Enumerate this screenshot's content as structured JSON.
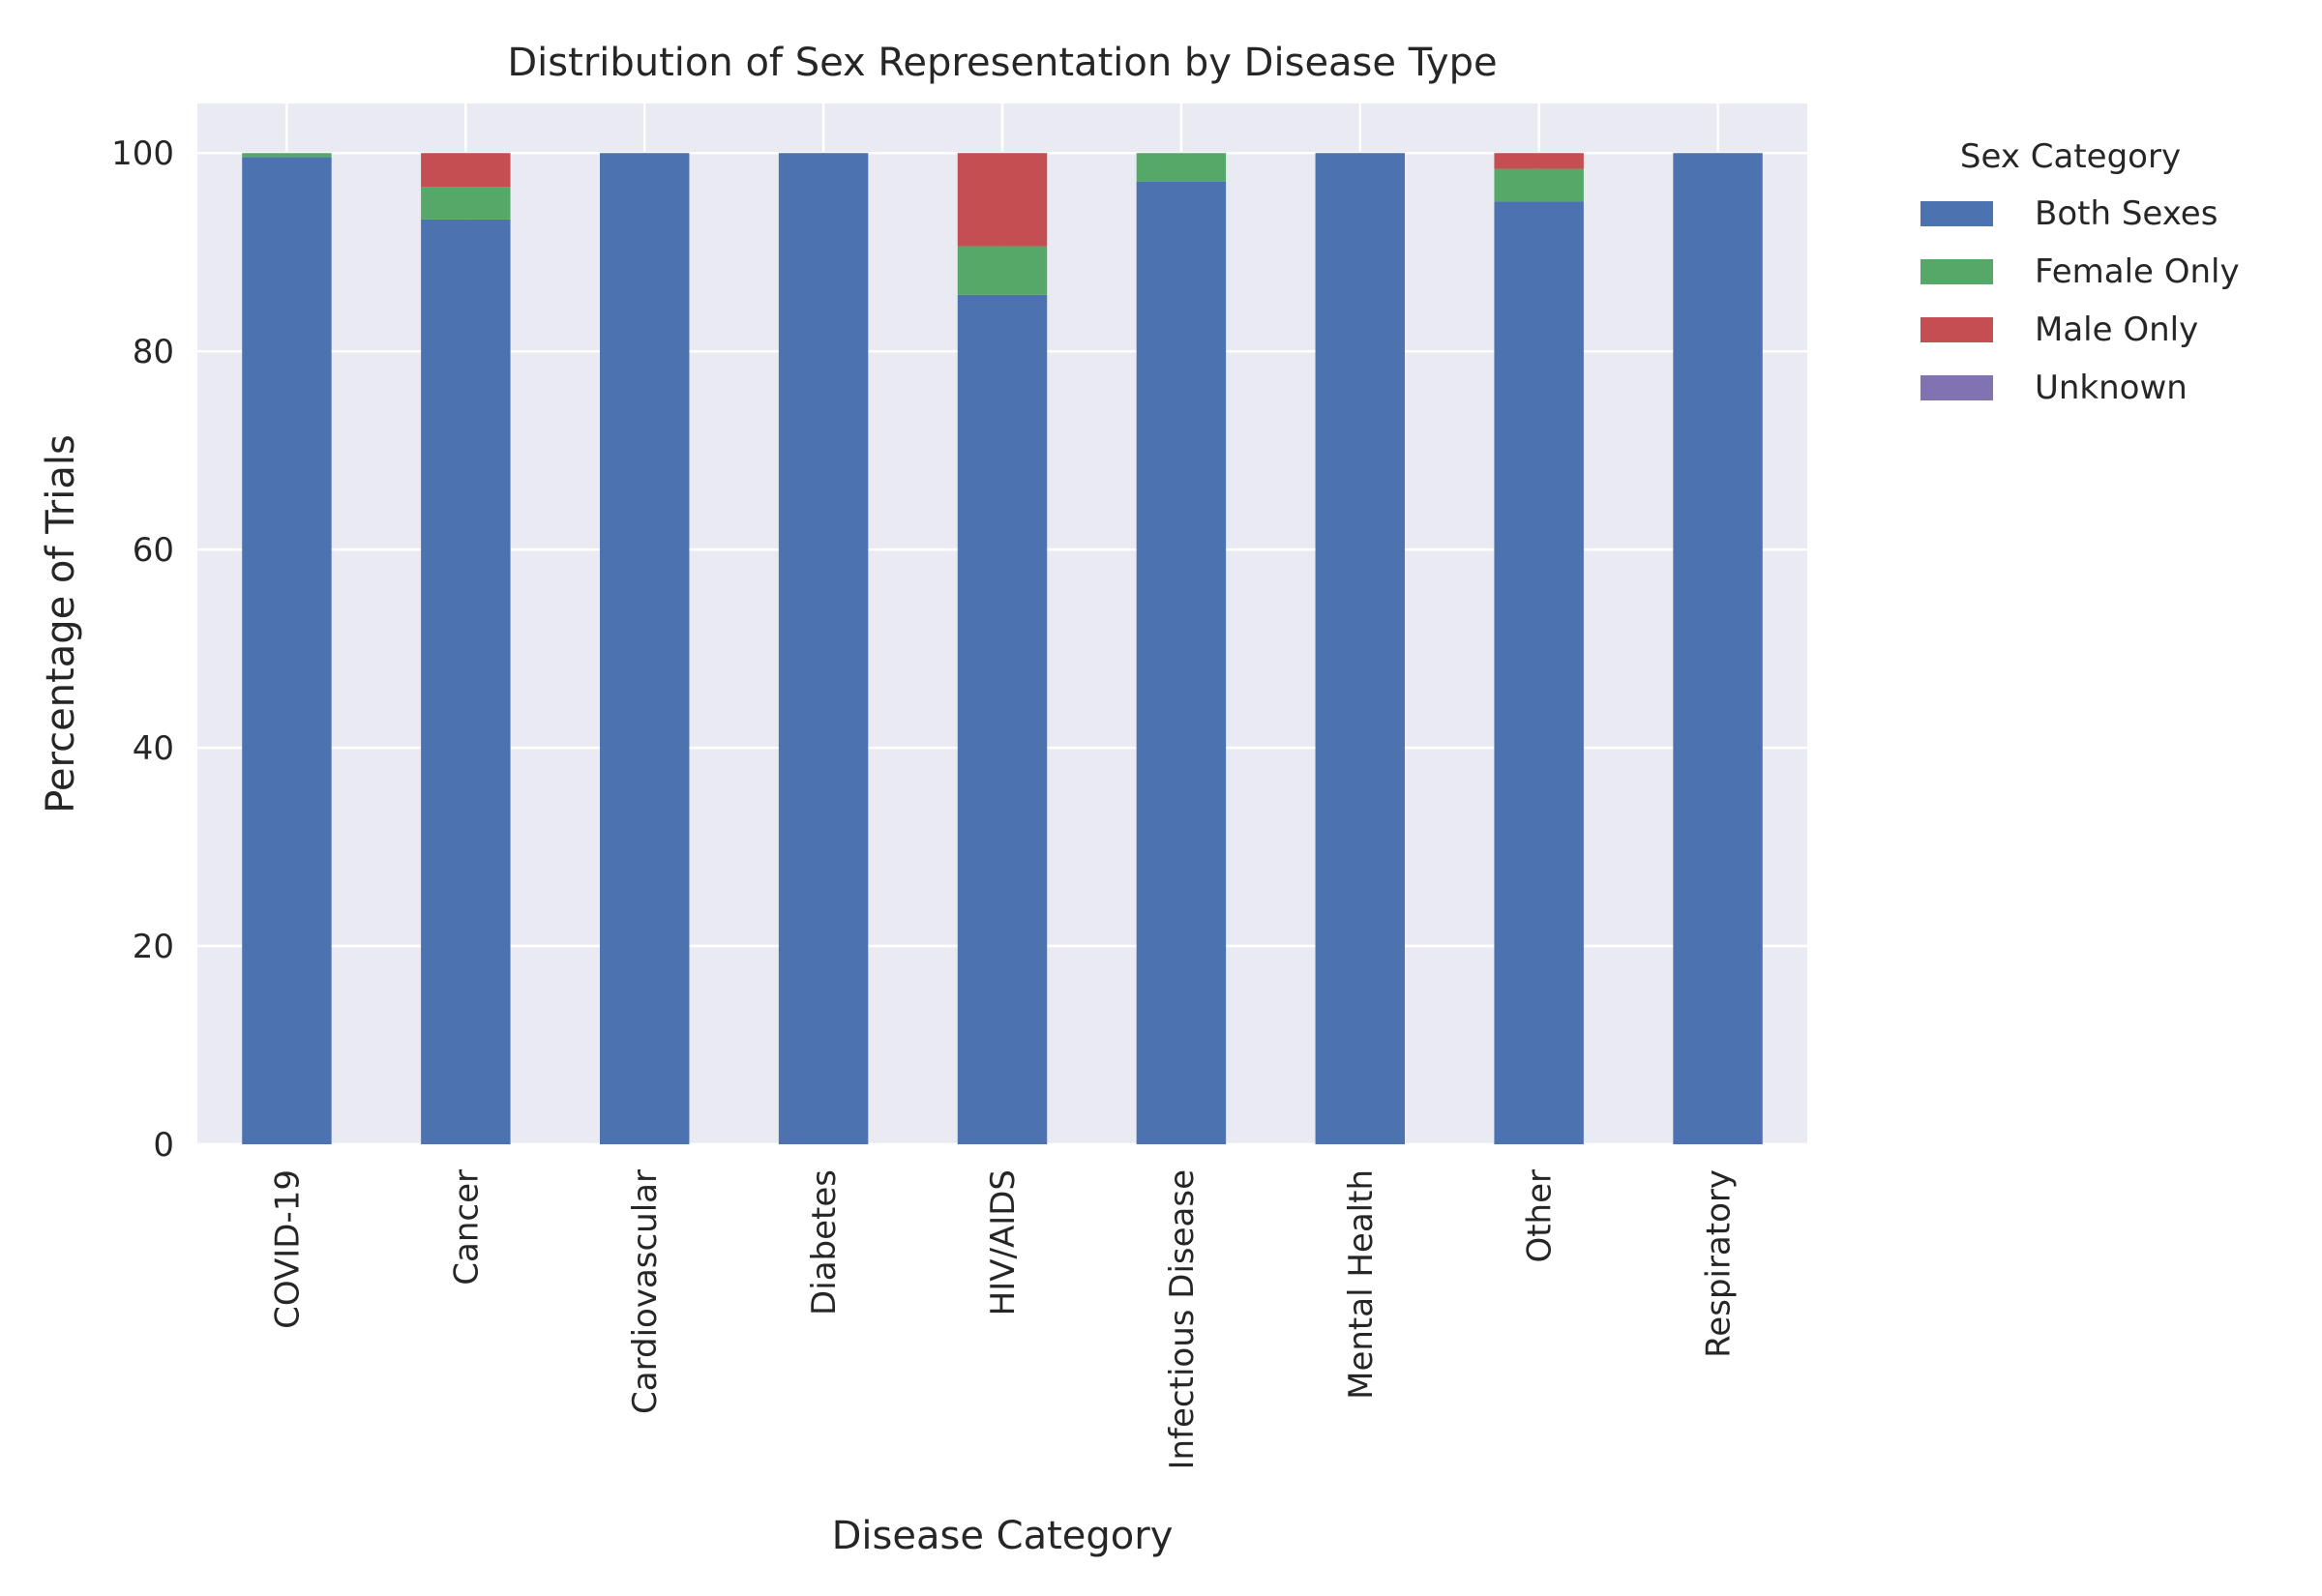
{
  "chart_data": {
    "type": "bar",
    "stacked": true,
    "title": "Distribution of Sex Representation by Disease Type",
    "xlabel": "Disease Category",
    "ylabel": "Percentage of Trials",
    "ylim": [
      0,
      105
    ],
    "yticks": [
      0,
      20,
      40,
      60,
      80,
      100
    ],
    "grid": true,
    "legend_position": "outside-right",
    "legend_title": "Sex Category",
    "categories": [
      "COVID-19",
      "Cancer",
      "Cardiovascular",
      "Diabetes",
      "HIV/AIDS",
      "Infectious Disease",
      "Mental Health",
      "Other",
      "Respiratory"
    ],
    "series": [
      {
        "name": "Both Sexes",
        "color": "#4c72b0",
        "values": [
          99.6,
          93.3,
          100,
          100,
          85.7,
          97.1,
          100,
          95.1,
          100
        ]
      },
      {
        "name": "Female Only",
        "color": "#55a868",
        "values": [
          0.4,
          3.3,
          0,
          0,
          4.9,
          2.9,
          0,
          3.3,
          0
        ]
      },
      {
        "name": "Male Only",
        "color": "#c44e52",
        "values": [
          0,
          3.4,
          0,
          0,
          9.4,
          0,
          0,
          1.6,
          0
        ]
      },
      {
        "name": "Unknown",
        "color": "#8172b2",
        "values": [
          0,
          0,
          0,
          0,
          0,
          0,
          0,
          0,
          0
        ]
      }
    ],
    "plot_background": "#eaeaf2",
    "grid_color": "#ffffff"
  }
}
